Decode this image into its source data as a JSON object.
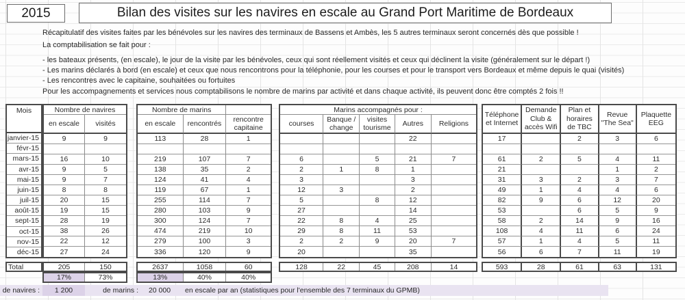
{
  "year": "2015",
  "title": "Bilan des visites sur les navires en escale au Grand Port Maritime de Bordeaux",
  "intro_lines": [
    "Récapitulatif des visites faites par les bénévoles sur les navires des terminaux de Bassens et Ambès, les 5 autres terminaux seront concernés dès que possible !",
    "La comptabilisation se fait pour :",
    "- les bateaux présents, (en escale), le jour de la visite par les bénévoles, ceux qui sont réellement visités et ceux qui déclinent la visite (généralement sur le départ !)",
    "- Les marins déclarés à bord (en escale) et ceux que nous rencontrons pour la téléphonie, pour les courses et pour le transport vers Bordeaux et même depuis le quai (visités)",
    "- Les rencontres avec le capitaine, souhaitées ou fortuites",
    "Pour les accompagnements et services nous comptabilisons le nombre de marins par activité et dans chaque activité, ils peuvent donc être comptés 2 fois !!"
  ],
  "table": {
    "mois_header": "Mois",
    "months": [
      "janvier-15",
      "févr-15",
      "mars-15",
      "avr-15",
      "mai-15",
      "juin-15",
      "juil-15",
      "août-15",
      "sept-15",
      "oct-15",
      "nov-15",
      "déc-15"
    ],
    "total_label": "Total",
    "navires": {
      "title": "Nombre de navires",
      "columns": [
        "en escale",
        "visités"
      ],
      "rows": [
        [
          "9",
          "9"
        ],
        [
          "",
          ""
        ],
        [
          "16",
          "10"
        ],
        [
          "9",
          "5"
        ],
        [
          "9",
          "7"
        ],
        [
          "8",
          "8"
        ],
        [
          "20",
          "15"
        ],
        [
          "19",
          "15"
        ],
        [
          "28",
          "19"
        ],
        [
          "38",
          "26"
        ],
        [
          "22",
          "12"
        ],
        [
          "27",
          "24"
        ]
      ],
      "totals": [
        "205",
        "150"
      ],
      "percents": [
        "17%",
        "73%"
      ]
    },
    "marins": {
      "title": "Nombre de marins",
      "columns": [
        "en escale",
        "rencontrés",
        "rencontre capitaine"
      ],
      "rows": [
        [
          "113",
          "28",
          "1"
        ],
        [
          "",
          "",
          ""
        ],
        [
          "219",
          "107",
          "7"
        ],
        [
          "138",
          "35",
          "2"
        ],
        [
          "124",
          "41",
          "4"
        ],
        [
          "119",
          "67",
          "1"
        ],
        [
          "255",
          "114",
          "7"
        ],
        [
          "280",
          "103",
          "9"
        ],
        [
          "300",
          "124",
          "7"
        ],
        [
          "474",
          "219",
          "10"
        ],
        [
          "279",
          "100",
          "3"
        ],
        [
          "336",
          "120",
          "9"
        ]
      ],
      "totals": [
        "2637",
        "1058",
        "60"
      ],
      "percents": [
        "13%",
        "40%",
        "40%"
      ]
    },
    "accompagnes": {
      "title": "Marins accompagnés pour :",
      "columns": [
        "courses",
        "Banque / change",
        "visites tourisme",
        "Autres",
        "Religions"
      ],
      "rows": [
        [
          "",
          "",
          "",
          "22",
          ""
        ],
        [
          "",
          "",
          "",
          "",
          ""
        ],
        [
          "6",
          "",
          "5",
          "21",
          "7"
        ],
        [
          "2",
          "1",
          "8",
          "1",
          ""
        ],
        [
          "3",
          "",
          "",
          "3",
          ""
        ],
        [
          "12",
          "3",
          "",
          "2",
          ""
        ],
        [
          "5",
          "",
          "8",
          "12",
          ""
        ],
        [
          "27",
          "",
          "",
          "14",
          ""
        ],
        [
          "22",
          "8",
          "4",
          "25",
          ""
        ],
        [
          "29",
          "8",
          "11",
          "53",
          ""
        ],
        [
          "2",
          "2",
          "9",
          "20",
          "7"
        ],
        [
          "20",
          "",
          "",
          "35",
          ""
        ]
      ],
      "totals": [
        "128",
        "22",
        "45",
        "208",
        "14"
      ]
    },
    "services": {
      "columns": [
        "Téléphone et Internet",
        "Demande Club & accès Wifi",
        "Plan et horaires de TBC",
        "Revue \"The Sea\"",
        "Plaquette EEG"
      ],
      "rows": [
        [
          "17",
          "",
          "2",
          "3",
          "6"
        ],
        [
          "",
          "",
          "",
          "",
          ""
        ],
        [
          "61",
          "2",
          "5",
          "4",
          "11"
        ],
        [
          "21",
          "",
          "",
          "1",
          "2"
        ],
        [
          "31",
          "3",
          "2",
          "3",
          "7"
        ],
        [
          "49",
          "1",
          "4",
          "4",
          "6"
        ],
        [
          "82",
          "9",
          "6",
          "12",
          "20"
        ],
        [
          "53",
          "",
          "6",
          "5",
          "9"
        ],
        [
          "58",
          "2",
          "14",
          "9",
          "16"
        ],
        [
          "108",
          "4",
          "11",
          "6",
          "24"
        ],
        [
          "57",
          "1",
          "4",
          "5",
          "11"
        ],
        [
          "56",
          "6",
          "7",
          "11",
          "19"
        ]
      ],
      "totals": [
        "593",
        "28",
        "61",
        "63",
        "131"
      ]
    }
  },
  "footer": {
    "navires_label": "de navires :",
    "navires_value": "1 200",
    "marins_label": "de marins :",
    "marins_value": "20 000",
    "note": "en escale par an (statistiques pour l'ensemble des 7 terminaux du GPMB)"
  },
  "colors": {
    "highlight": "#dcd2e8",
    "strip": "#e9e3f1",
    "border_medium": "#4a4a4a",
    "border_thin": "#8a8a8a"
  }
}
